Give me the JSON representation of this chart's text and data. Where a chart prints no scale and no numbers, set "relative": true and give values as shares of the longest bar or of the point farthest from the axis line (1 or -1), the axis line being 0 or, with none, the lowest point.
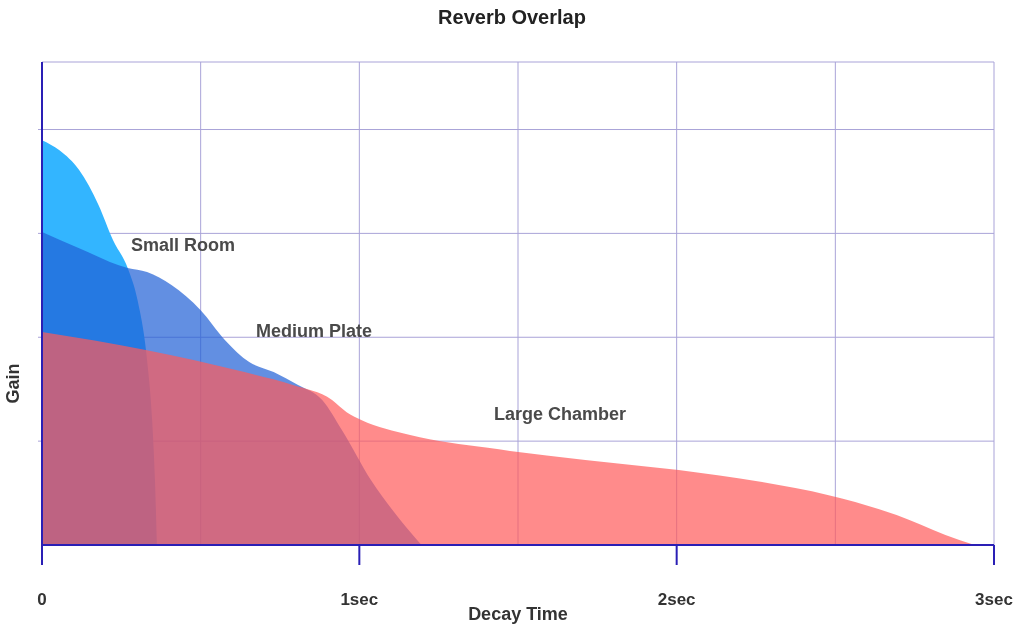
{
  "chart_data": {
    "type": "area",
    "title": "Reverb Overlap",
    "xlabel": "Decay Time",
    "ylabel": "Gain",
    "relative": true,
    "grid": true,
    "xlim": [
      0,
      3
    ],
    "xticks": [
      0,
      {
        "value": 1,
        "label": "1sec"
      },
      {
        "value": 2,
        "label": "2sec"
      },
      {
        "value": 3,
        "label": "3sec"
      }
    ],
    "series": [
      {
        "name": "Small Room",
        "color": "#33b5ff",
        "x": [
          0,
          0.055,
          0.117,
          0.178,
          0.224,
          0.27,
          0.301,
          0.331,
          0.347,
          0.356,
          0.362
        ],
        "values": [
          1.0,
          0.975,
          0.926,
          0.84,
          0.753,
          0.684,
          0.605,
          0.457,
          0.309,
          0.16,
          0
        ]
      },
      {
        "name": "Medium Plate",
        "color": "#1f5fd6",
        "x": [
          0,
          0.117,
          0.27,
          0.331,
          0.408,
          0.5,
          0.577,
          0.653,
          0.73,
          0.807,
          0.883,
          0.945,
          1.037,
          1.129,
          1.196
        ],
        "values": [
          0.773,
          0.733,
          0.684,
          0.674,
          0.642,
          0.58,
          0.506,
          0.452,
          0.427,
          0.395,
          0.358,
          0.284,
          0.16,
          0.062,
          0
        ]
      },
      {
        "name": "Large Chamber",
        "color": "#ff5a5a",
        "x": [
          0,
          0.331,
          0.638,
          0.791,
          0.914,
          0.96,
          1.006,
          1.16,
          1.405,
          1.712,
          2.006,
          2.264,
          2.479,
          2.693,
          2.847,
          2.939
        ],
        "values": [
          0.526,
          0.481,
          0.427,
          0.395,
          0.358,
          0.328,
          0.309,
          0.272,
          0.24,
          0.21,
          0.185,
          0.156,
          0.123,
          0.074,
          0.025,
          0
        ]
      }
    ]
  }
}
